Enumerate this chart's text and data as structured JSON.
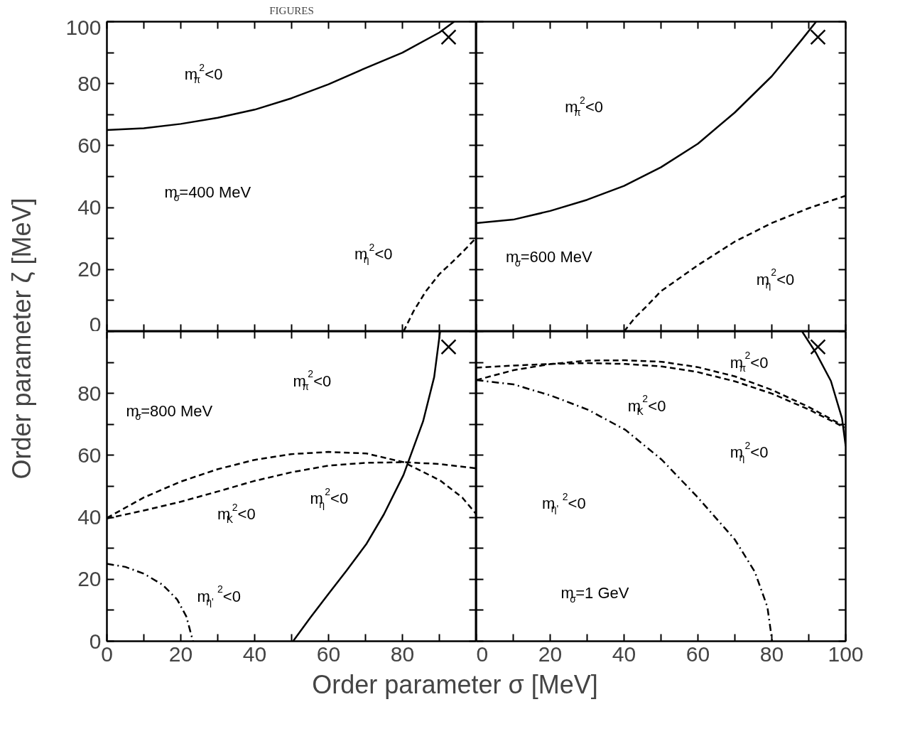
{
  "chart_data": [
    {
      "type": "line",
      "title": "FIGURES",
      "ylabel": "Order parameter ζ [MeV]",
      "xlim": [
        0,
        100
      ],
      "ylim": [
        0,
        100
      ],
      "tick_labels": "y",
      "grid": false,
      "xticks": [
        0,
        10,
        20,
        30,
        40,
        50,
        60,
        70,
        80,
        90,
        100
      ],
      "yticks": [
        0,
        {
          "value": 10,
          "label": null
        },
        20,
        {
          "value": 30,
          "label": null
        },
        40,
        {
          "value": 50,
          "label": null
        },
        60,
        {
          "value": 70,
          "label": null
        },
        80,
        {
          "value": 90,
          "label": null
        },
        100
      ],
      "series": [
        {
          "color": "#000000",
          "line_style": "solid",
          "x": [
            0,
            10,
            20,
            30,
            40,
            50,
            60,
            70,
            80,
            90,
            94
          ],
          "values": [
            65,
            65.6,
            67,
            69,
            71.6,
            75.3,
            79.8,
            85,
            90,
            96.5,
            100
          ]
        },
        {
          "color": "#000000",
          "line_style": "dashed",
          "x": [
            80.3,
            83,
            86.3,
            90,
            93.6,
            97,
            100
          ],
          "values": [
            0,
            6.5,
            12.9,
            18.5,
            22.5,
            26.5,
            30.3
          ]
        },
        {
          "type": "scatter",
          "marker": "cross",
          "color": "#000000",
          "x": [
            92.5
          ],
          "values": [
            95
          ]
        }
      ],
      "annotations": [
        "m$_{π}$$^{2}$<0",
        "m$_{σ}$=400 MeV",
        "m$_{η}$$^{2}$<0"
      ]
    },
    {
      "type": "line",
      "xlim": [
        0,
        100
      ],
      "ylim": [
        0,
        100
      ],
      "tick_labels": false,
      "grid": false,
      "xticks": [
        0,
        10,
        20,
        30,
        40,
        50,
        60,
        70,
        80,
        90,
        100
      ],
      "yticks": [
        0,
        10,
        20,
        30,
        40,
        50,
        60,
        70,
        80,
        90,
        100
      ],
      "series": [
        {
          "color": "#000000",
          "line_style": "solid",
          "x": [
            0,
            10,
            20,
            30,
            40,
            50,
            60,
            70,
            80,
            88,
            92
          ],
          "values": [
            35,
            36.1,
            38.9,
            42.5,
            47,
            53,
            60.6,
            70.7,
            82.4,
            94,
            100
          ]
        },
        {
          "color": "#000000",
          "line_style": "dashed",
          "x": [
            40,
            43,
            46,
            50,
            60,
            70,
            80,
            90,
            100
          ],
          "values": [
            0,
            4.5,
            8,
            13,
            21.4,
            29,
            35,
            39.8,
            43.8
          ]
        },
        {
          "type": "scatter",
          "marker": "cross",
          "color": "#000000",
          "x": [
            92.5
          ],
          "values": [
            95
          ]
        }
      ],
      "annotations": [
        "m$_{π}$$^{2}$<0",
        "m$_{σ}$=600 MeV",
        "m$_{η}$$^{2}$<0"
      ]
    },
    {
      "type": "line",
      "xlabel": "Order parameter σ [MeV]",
      "xlim": [
        0,
        100
      ],
      "ylim": [
        0,
        100
      ],
      "grid": false,
      "xticks": [
        0,
        {
          "value": 10,
          "label": null
        },
        20,
        {
          "value": 30,
          "label": null
        },
        40,
        {
          "value": 50,
          "label": null
        },
        60,
        {
          "value": 70,
          "label": null
        },
        80,
        {
          "value": 90,
          "label": null
        },
        {
          "value": 100,
          "label": null
        }
      ],
      "yticks": [
        0,
        {
          "value": 10,
          "label": null
        },
        20,
        {
          "value": 30,
          "label": null
        },
        40,
        {
          "value": 50,
          "label": null
        },
        60,
        {
          "value": 70,
          "label": null
        },
        80,
        {
          "value": 90,
          "label": null
        },
        {
          "value": 100,
          "label": null
        }
      ],
      "series": [
        {
          "color": "#000000",
          "line_style": "solid",
          "x": [
            50.4,
            55,
            60,
            65,
            70.3,
            75,
            80.3,
            85.6,
            88.6,
            90.2
          ],
          "values": [
            0,
            7.5,
            15.3,
            23,
            31.5,
            41,
            53.7,
            71,
            85.3,
            100
          ]
        },
        {
          "color": "#000000",
          "line_style": "dashed",
          "x": [
            0,
            10,
            19.9,
            29.9,
            39.8,
            49.8,
            60,
            70.3,
            80.3,
            90.2,
            96.2,
            100
          ],
          "values": [
            39.8,
            46.4,
            51.5,
            55.5,
            58.5,
            60.4,
            61.1,
            60.6,
            57.8,
            51.9,
            46.4,
            41
          ]
        },
        {
          "color": "#000000",
          "line_style": "dashed",
          "x": [
            0,
            10,
            19.9,
            29.9,
            39.8,
            49.8,
            60,
            70.3,
            80.3,
            90.2,
            100
          ],
          "values": [
            39.6,
            42.2,
            45,
            48.3,
            51.7,
            54.5,
            56.7,
            57.6,
            57.8,
            57.2,
            55.8
          ]
        },
        {
          "color": "#000000",
          "line_style": "dashdot",
          "x": [
            0,
            5,
            10,
            15,
            19,
            21.5,
            23.3
          ],
          "values": [
            25,
            24,
            21.8,
            18.3,
            13.5,
            8,
            0
          ]
        },
        {
          "type": "scatter",
          "marker": "cross",
          "color": "#000000",
          "x": [
            92.5
          ],
          "values": [
            95
          ]
        }
      ],
      "annotations": [
        "m$_{π}$$^{2}$<0",
        "m$_{σ}$=800 MeV",
        "m$_{K}$$^{2}$<0",
        "m$_{η}$$^{2}$<0",
        "m$_{η'}$$^{2}$<0"
      ]
    },
    {
      "type": "line",
      "xlim": [
        0,
        100
      ],
      "ylim": [
        0,
        100
      ],
      "tick_labels": "x",
      "grid": false,
      "xticks": [
        0,
        {
          "value": 10,
          "label": null
        },
        20,
        {
          "value": 30,
          "label": null
        },
        40,
        {
          "value": 50,
          "label": null
        },
        60,
        {
          "value": 70,
          "label": null
        },
        80,
        {
          "value": 90,
          "label": null
        },
        100
      ],
      "yticks": [
        0,
        10,
        20,
        30,
        40,
        50,
        60,
        70,
        80,
        90,
        100
      ],
      "series": [
        {
          "color": "#000000",
          "line_style": "solid",
          "x": [
            88.2,
            92,
            96,
            99,
            100
          ],
          "values": [
            100,
            93,
            84,
            72,
            63
          ]
        },
        {
          "color": "#000000",
          "line_style": "dashed",
          "x": [
            0,
            10.1,
            20.2,
            30.3,
            40.4,
            50.2,
            59.9,
            70,
            80.1,
            90.2,
            99
          ],
          "values": [
            84.3,
            87.5,
            89.5,
            90.6,
            90.7,
            90.2,
            88.5,
            85.5,
            81.1,
            75.5,
            69.8
          ]
        },
        {
          "color": "#000000",
          "line_style": "dashed",
          "x": [
            0,
            10.1,
            20.2,
            30.3,
            40.4,
            50.2,
            59.9,
            70,
            80.1,
            90.2,
            99.7
          ],
          "values": [
            88.3,
            89,
            89.5,
            89.8,
            89.5,
            88.7,
            86.9,
            83.9,
            79.9,
            74.7,
            69
          ]
        },
        {
          "color": "#000000",
          "line_style": "dashdot",
          "x": [
            0,
            10.1,
            20.2,
            30.3,
            40.4,
            50.2,
            59.9,
            70,
            75.4,
            78.8,
            80.1
          ],
          "values": [
            84.3,
            82.9,
            79.3,
            74.7,
            68.2,
            58.6,
            46.5,
            32.8,
            22.4,
            11.1,
            0
          ]
        },
        {
          "type": "scatter",
          "marker": "cross",
          "color": "#000000",
          "x": [
            92.5
          ],
          "values": [
            95
          ]
        }
      ],
      "annotations": [
        "m$_{π}$$^{2}$<0",
        "m$_{K}$$^{2}$<0",
        "m$_{η}$$^{2}$<0",
        "m$_{η'}$$^{2}$<0",
        "m$_{σ}$=1 GeV"
      ]
    }
  ]
}
